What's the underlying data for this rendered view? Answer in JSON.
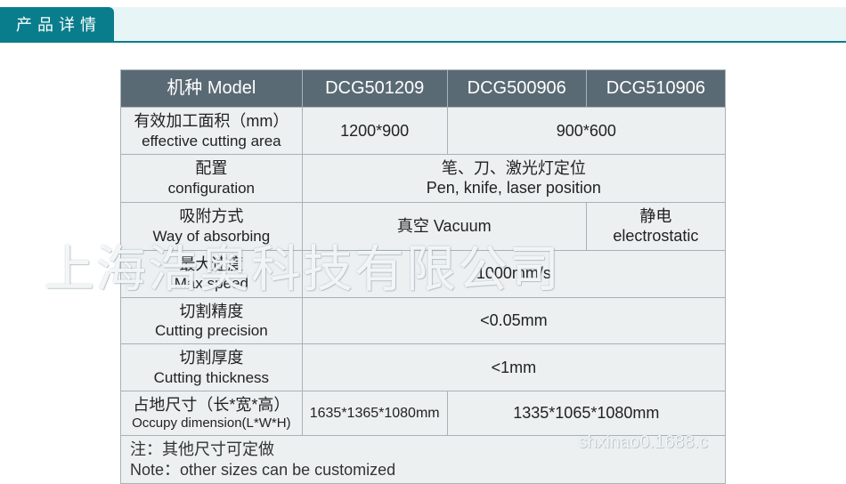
{
  "header": {
    "title": "产品详情"
  },
  "watermark": "上海浩奥科技有限公司",
  "footer_mark": "shxinao0.1688.c",
  "table": {
    "head": {
      "label_cn": "机种",
      "label_en": "Model",
      "model1": "DCG501209",
      "model2": "DCG500906",
      "model3": "DCG510906"
    },
    "rows": {
      "area": {
        "label_cn": "有效加工面积（mm）",
        "label_en": "effective cutting area",
        "v1": "1200*900",
        "v23": "900*600"
      },
      "config": {
        "label_cn": "配置",
        "label_en": "configuration",
        "val_cn": "笔、刀、激光灯定位",
        "val_en": "Pen, knife, laser position"
      },
      "absorb": {
        "label_cn": "吸附方式",
        "label_en": "Way of absorbing",
        "v12": "真空 Vacuum",
        "v3_cn": "静电",
        "v3_en": "electrostatic"
      },
      "speed": {
        "label_cn": "最大速度",
        "label_en": "Max speed",
        "val": "1000mm/s"
      },
      "precision": {
        "label_cn": "切割精度",
        "label_en": "Cutting precision",
        "val": "<0.05mm"
      },
      "thickness": {
        "label_cn": "切割厚度",
        "label_en": "Cutting thickness",
        "val": "<1mm"
      },
      "dimension": {
        "label_cn": "占地尺寸（长*宽*高）",
        "label_en": "Occupy dimension(L*W*H)",
        "v1": "1635*1365*1080mm",
        "v23": "1335*1065*1080mm"
      }
    },
    "note": {
      "cn": "注：其他尺寸可定做",
      "en": "Note：other sizes can be customized"
    }
  },
  "colors": {
    "header_bg": "#0a7d8c",
    "header_strip": "#e8f5f6",
    "th_bg": "#5a6a74",
    "td_bg": "#ecf0f1",
    "border": "#a9b1b6"
  }
}
